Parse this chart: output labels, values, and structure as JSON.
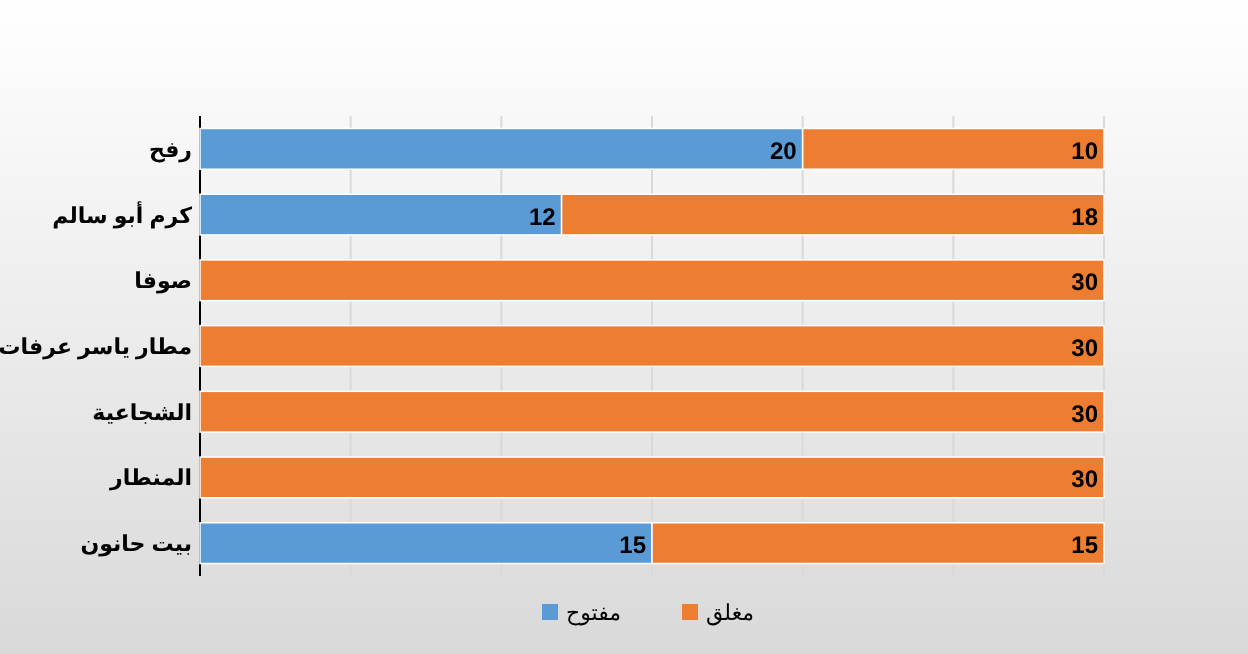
{
  "chart_data": {
    "type": "bar",
    "orientation": "horizontal",
    "stacked": true,
    "categories": [
      "رفح",
      "كرم أبو سالم",
      "صوفا",
      "مطار ياسر عرفات",
      "الشجاعية",
      "المنطار",
      "بيت حانون"
    ],
    "series": [
      {
        "name": "مفتوح",
        "color": "#5b9bd5",
        "values": [
          20,
          12,
          null,
          null,
          null,
          null,
          15
        ]
      },
      {
        "name": "مغلق",
        "color": "#ed7d31",
        "values": [
          10,
          18,
          30,
          30,
          30,
          30,
          15
        ]
      }
    ],
    "xlim": [
      0,
      30
    ],
    "xticks": [
      {
        "value": 0,
        "label": null
      },
      {
        "value": 5,
        "label": null
      },
      {
        "value": 10,
        "label": null
      },
      {
        "value": 15,
        "label": null
      },
      {
        "value": 20,
        "label": null
      },
      {
        "value": 25,
        "label": null
      },
      {
        "value": 30,
        "label": null
      }
    ],
    "tick_labels": "y",
    "grid": "x",
    "legend": "bottom",
    "data_labels": true
  }
}
